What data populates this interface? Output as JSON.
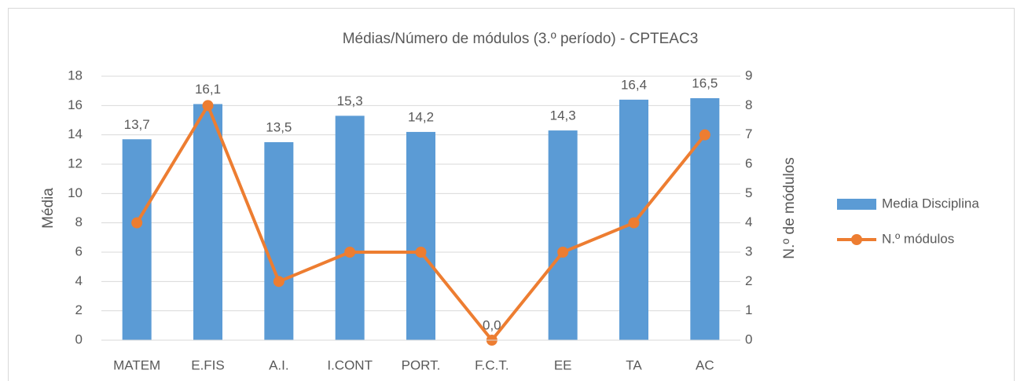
{
  "chart_data": {
    "type": "bar",
    "title": "Médias/Número de módulos (3.º período) - CPTEAC3",
    "y_label": "Média",
    "y2_label": "N.º de módulos",
    "categories": [
      "MATEM",
      "E.FIS",
      "A.I.",
      "I.CONT",
      "PORT.",
      "F.C.T.",
      "EE",
      "TA",
      "AC"
    ],
    "series": [
      {
        "name": "Media Disciplina",
        "type": "bar",
        "color": "#5b9bd5",
        "values": [
          13.7,
          16.1,
          13.5,
          15.3,
          14.2,
          0.0,
          14.3,
          16.4,
          16.5
        ],
        "value_labels": [
          "13,7",
          "16,1",
          "13,5",
          "15,3",
          "14,2",
          "0,0",
          "14,3",
          "16,4",
          "16,5"
        ]
      },
      {
        "name": "N.º módulos",
        "type": "line",
        "axis": "y2",
        "color": "#ed7d31",
        "values": [
          4,
          8,
          2,
          3,
          3,
          0,
          3,
          4,
          7
        ]
      }
    ],
    "ylim": [
      0,
      18
    ],
    "yticks": [
      0,
      2,
      4,
      6,
      8,
      10,
      12,
      14,
      16,
      18
    ],
    "y2lim": [
      0,
      9
    ],
    "y2ticks": [
      0,
      1,
      2,
      3,
      4,
      5,
      6,
      7,
      8,
      9
    ],
    "grid": true,
    "legend": "right"
  }
}
